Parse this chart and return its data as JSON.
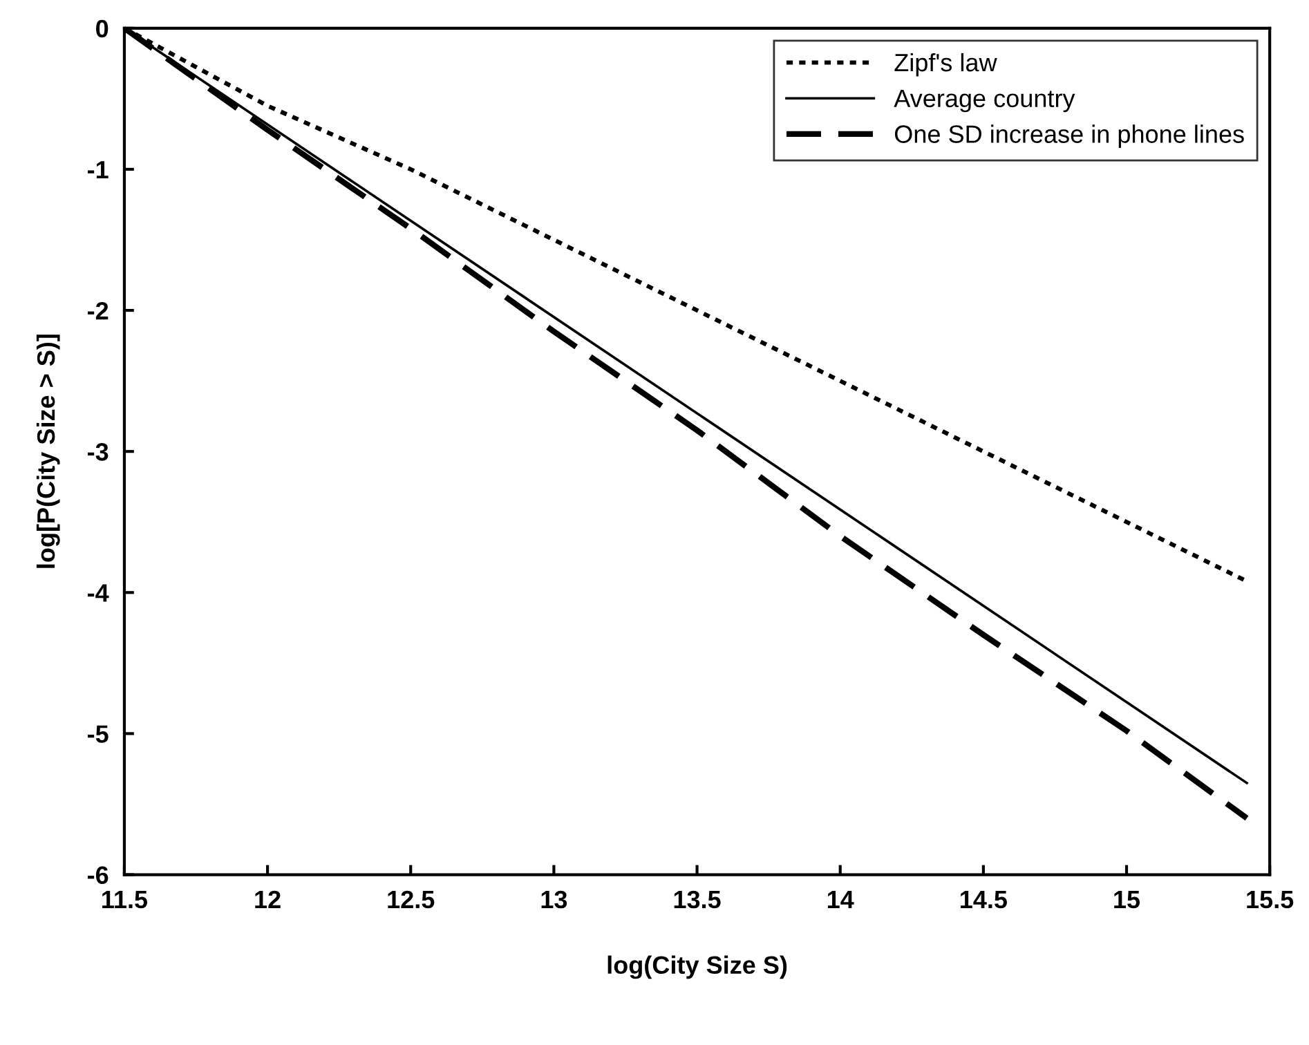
{
  "chart_data": {
    "type": "line",
    "xlabel": "log(City Size S)",
    "ylabel": "log[P(City Size > S)]",
    "xlim": [
      11.5,
      15.5
    ],
    "ylim": [
      -6,
      0
    ],
    "xticks": [
      11.5,
      12,
      12.5,
      13,
      13.5,
      14,
      14.5,
      15,
      15.5
    ],
    "yticks": [
      -6,
      -5,
      -4,
      -3,
      -2,
      -1,
      0
    ],
    "grid": false,
    "legend": "top right",
    "series": [
      {
        "name": "Zipf's law",
        "color": "#000000",
        "line_style": "dotted",
        "x": [
          11.5,
          12,
          12.5,
          13,
          13.5,
          14,
          14.5,
          15,
          15.42
        ],
        "values": [
          0,
          -0.55,
          -1.0,
          -1.5,
          -2.0,
          -2.5,
          -3.0,
          -3.5,
          -3.92
        ]
      },
      {
        "name": "Average country",
        "color": "#000000",
        "line_style": "solid",
        "x": [
          11.5,
          15.42
        ],
        "values": [
          0,
          -5.35
        ]
      },
      {
        "name": "One SD increase in phone lines",
        "color": "#000000",
        "line_style": "dashed",
        "x": [
          11.5,
          12,
          12.5,
          13,
          13.5,
          14,
          14.5,
          15,
          15.42
        ],
        "values": [
          0,
          -0.72,
          -1.42,
          -2.15,
          -2.85,
          -3.6,
          -4.3,
          -4.98,
          -5.6
        ]
      }
    ]
  }
}
